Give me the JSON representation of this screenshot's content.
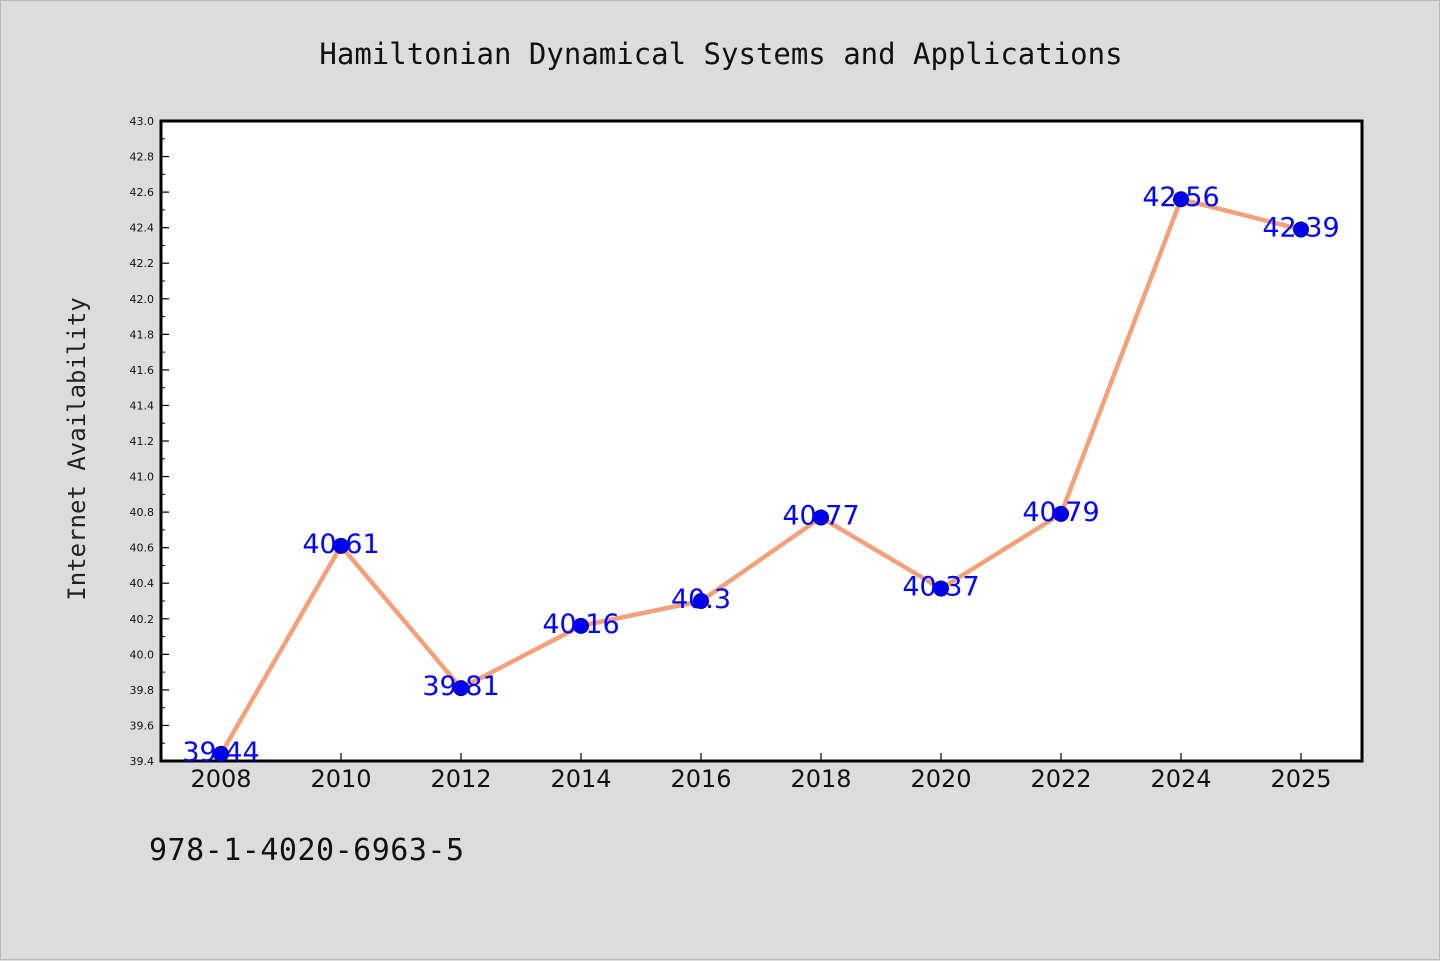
{
  "chart_data": {
    "type": "line",
    "title": "Hamiltonian Dynamical Systems and Applications",
    "xlabel": "",
    "ylabel": "Internet Availability",
    "categories": [
      "2008",
      "2010",
      "2012",
      "2014",
      "2016",
      "2018",
      "2020",
      "2022",
      "2024",
      "2025"
    ],
    "values": [
      39.44,
      40.61,
      39.81,
      40.16,
      40.3,
      40.77,
      40.37,
      40.79,
      42.56,
      42.39
    ],
    "data_labels": [
      "39.44",
      "40.61",
      "39.81",
      "40.16",
      "40.3",
      "40.77",
      "40.37",
      "40.79",
      "42.56",
      "42.39"
    ],
    "ylim": [
      39.4,
      43.0
    ],
    "yticks": [
      "39.4",
      "39.6",
      "39.8",
      "40.0",
      "40.2",
      "40.4",
      "40.6",
      "40.8",
      "41.0",
      "41.2",
      "41.4",
      "41.6",
      "41.8",
      "42.0",
      "42.2",
      "42.4",
      "42.6",
      "42.8",
      "43.0"
    ],
    "grid": false,
    "legend": "none",
    "colors": {
      "line": "#f4a07a",
      "marker": "#0000ee",
      "data_label": "#0000ff",
      "background": "#dcdcdc",
      "plot_bg": "#ffffff"
    }
  },
  "footer": {
    "isbn": "978-1-4020-6963-5"
  }
}
